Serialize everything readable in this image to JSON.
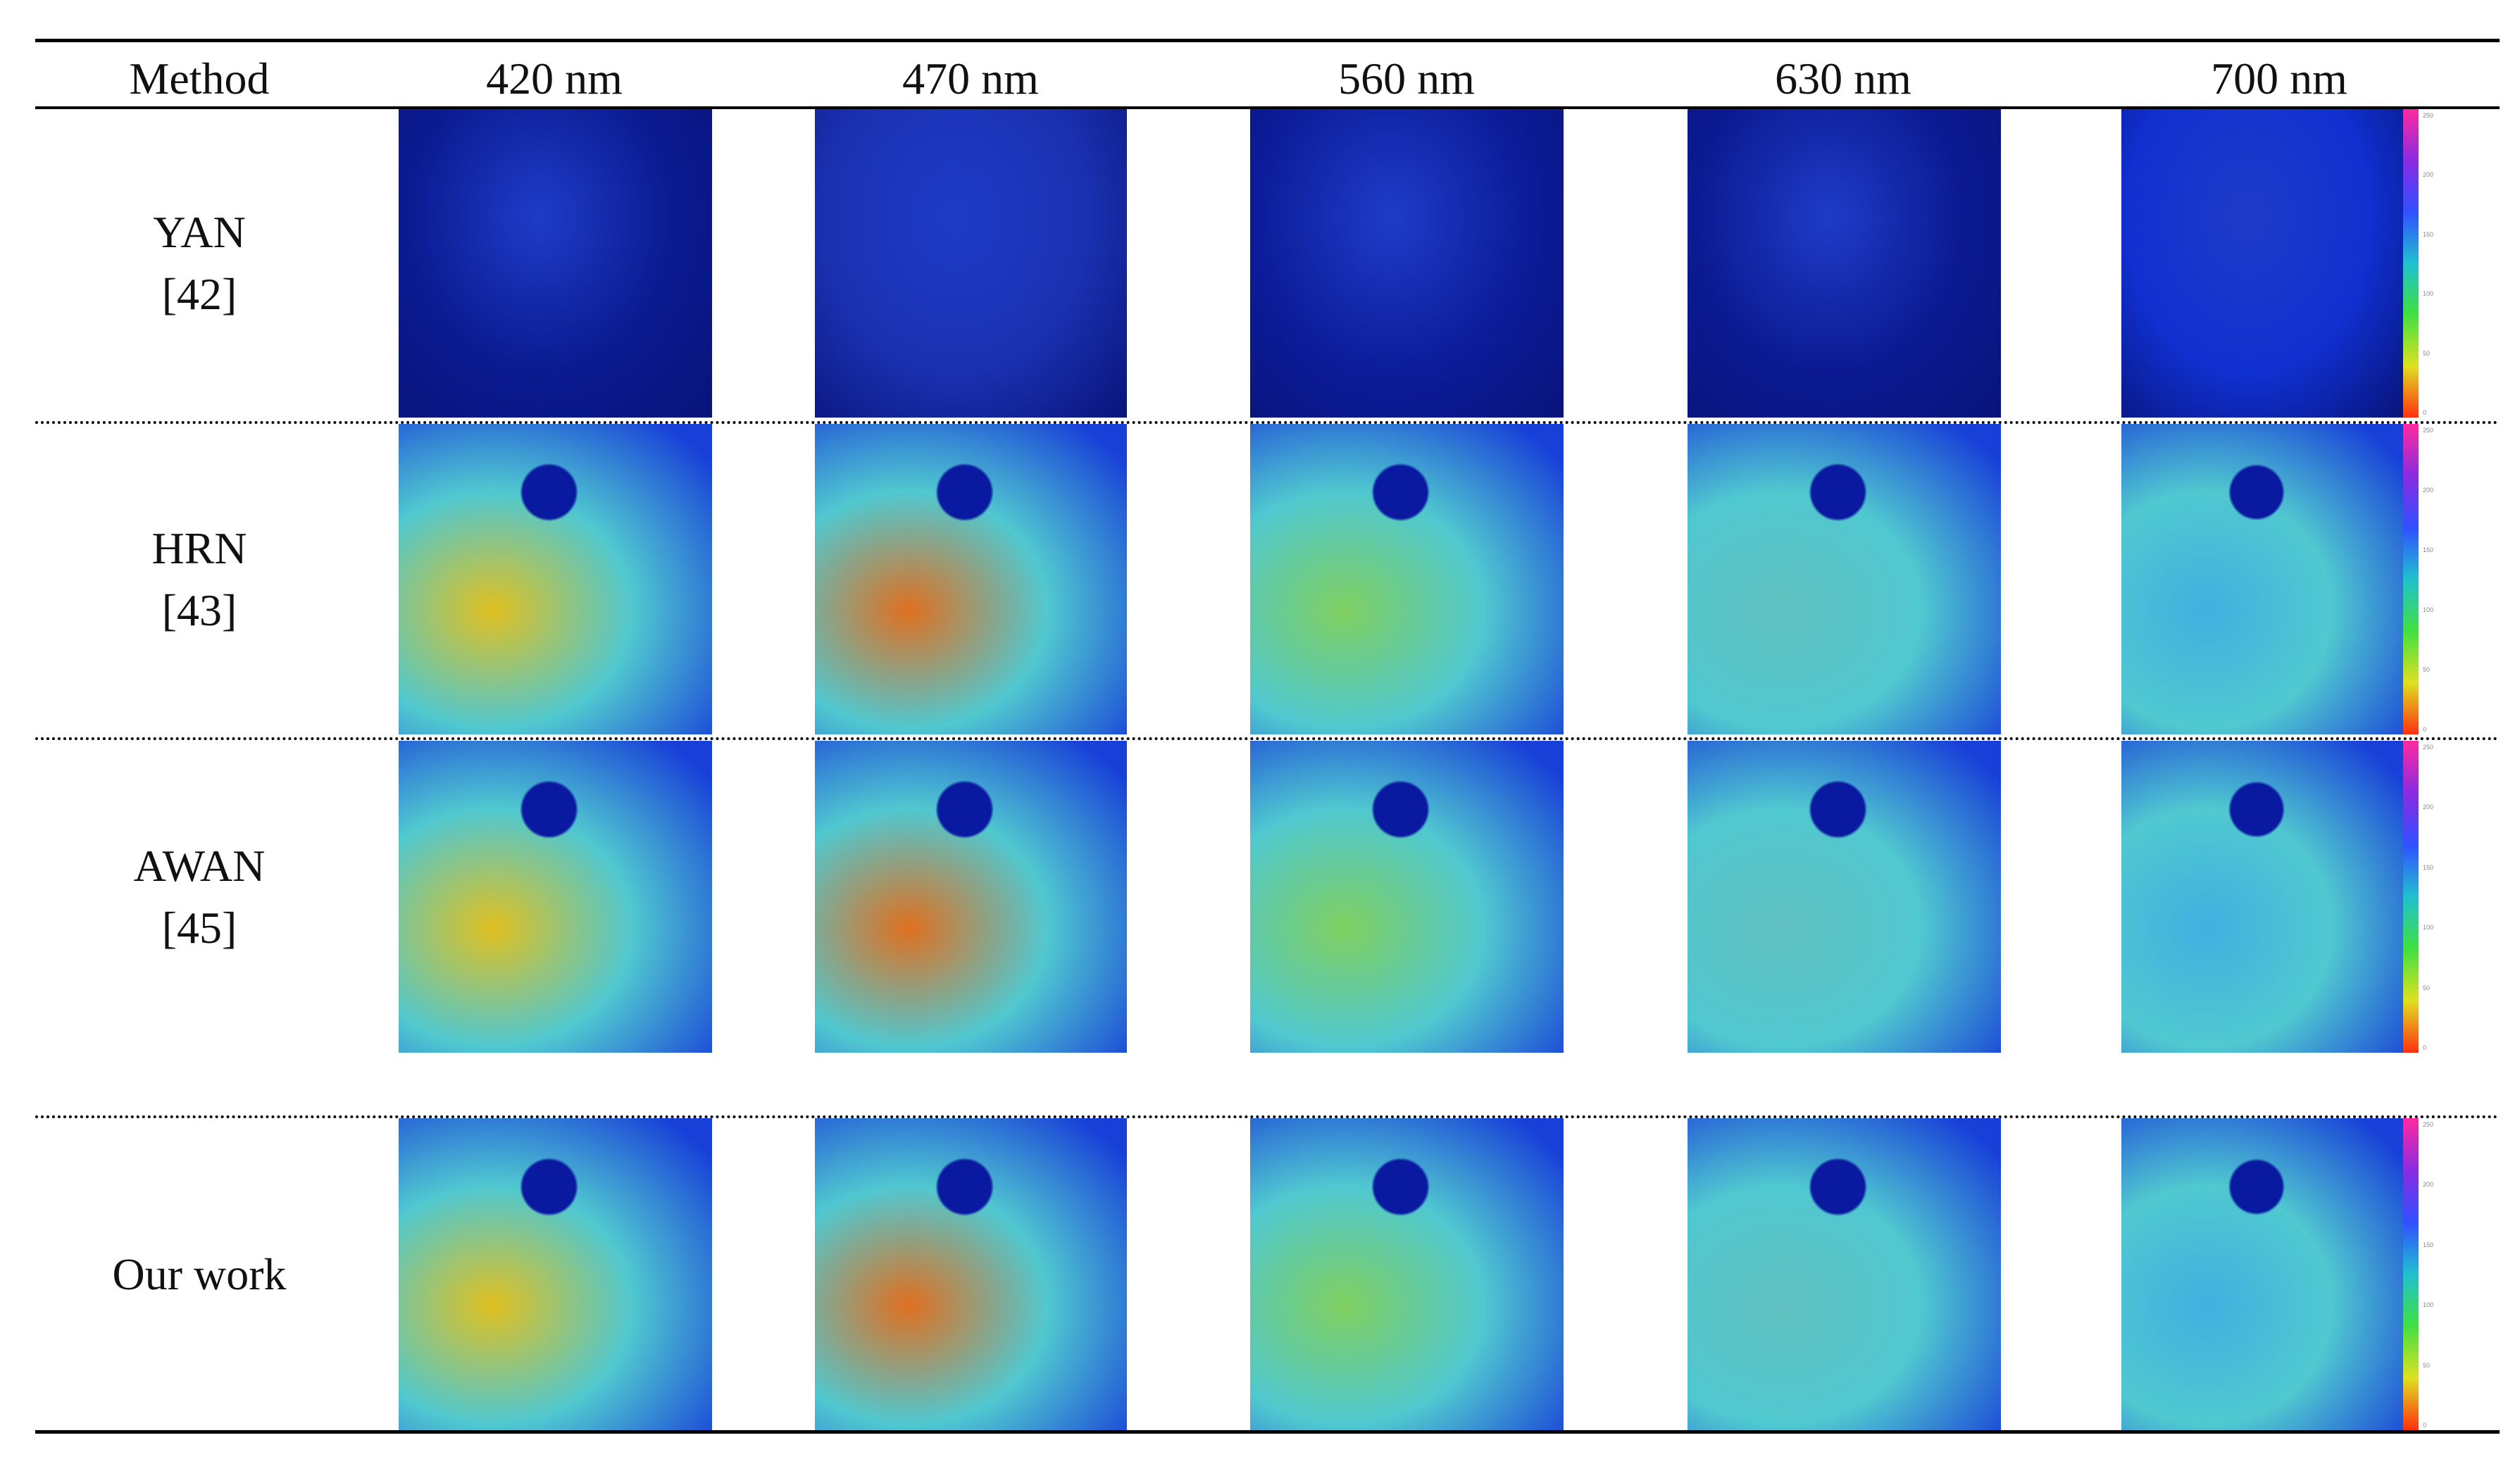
{
  "table": {
    "header": [
      "Method",
      "420 nm",
      "470 nm",
      "560 nm",
      "630 nm",
      "700 nm"
    ],
    "rows": [
      {
        "method": "YAN",
        "ref": "[42]"
      },
      {
        "method": "HRN",
        "ref": "[43]"
      },
      {
        "method": "AWAN",
        "ref": "[45]"
      },
      {
        "method": "Our work"
      }
    ],
    "colorbar_ticks": [
      "250",
      "200",
      "150",
      "100",
      "50",
      "0"
    ]
  }
}
